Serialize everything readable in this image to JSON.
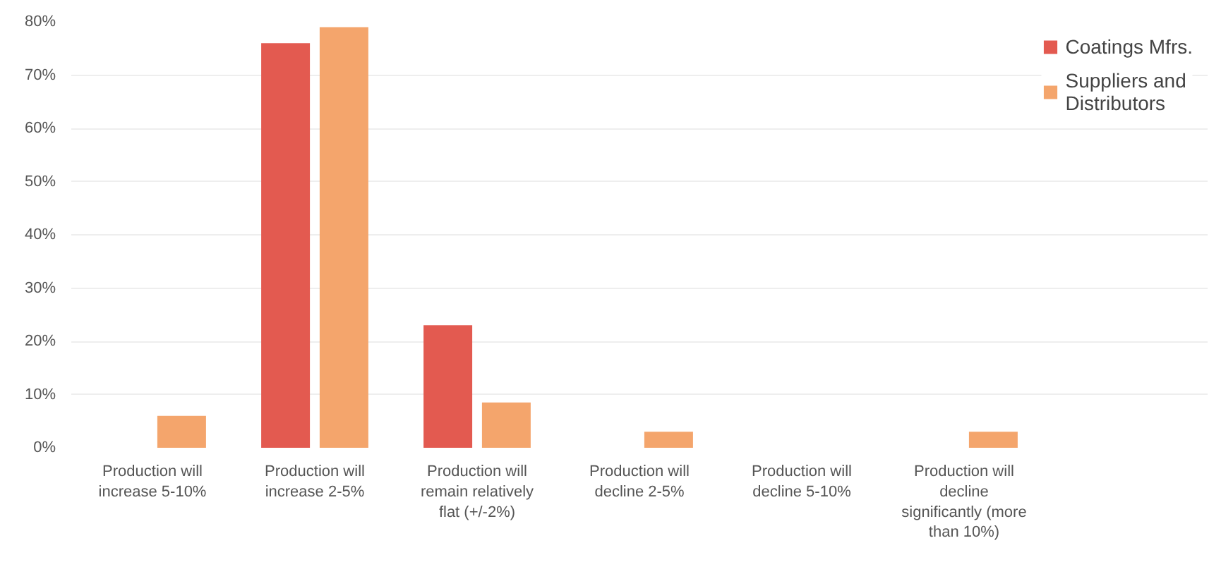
{
  "chart_data": {
    "type": "bar",
    "categories": [
      "Production will increase 5-10%",
      "Production will increase 2-5%",
      "Production will remain relatively flat (+/-2%)",
      "Production will decline 2-5%",
      "Production will decline 5-10%",
      "Production will decline significantly (more than 10%)"
    ],
    "series": [
      {
        "name": "Coatings Mfrs.",
        "color": "#e35a50",
        "values": [
          0,
          76,
          23,
          0,
          0,
          0
        ]
      },
      {
        "name": "Suppliers and Distributors",
        "color": "#f4a56c",
        "values": [
          6,
          79,
          8.5,
          3,
          0,
          3
        ]
      }
    ],
    "ylim": [
      0,
      80
    ],
    "yticks": [
      {
        "value": 0,
        "label": "0%"
      },
      {
        "value": 10,
        "label": "10%"
      },
      {
        "value": 20,
        "label": "20%"
      },
      {
        "value": 30,
        "label": "30%"
      },
      {
        "value": 40,
        "label": "40%"
      },
      {
        "value": 50,
        "label": "50%"
      },
      {
        "value": 60,
        "label": "60%"
      },
      {
        "value": 70,
        "label": "70%"
      },
      {
        "value": 80,
        "label": "80%"
      }
    ],
    "grid": "y",
    "legend": "top right"
  }
}
